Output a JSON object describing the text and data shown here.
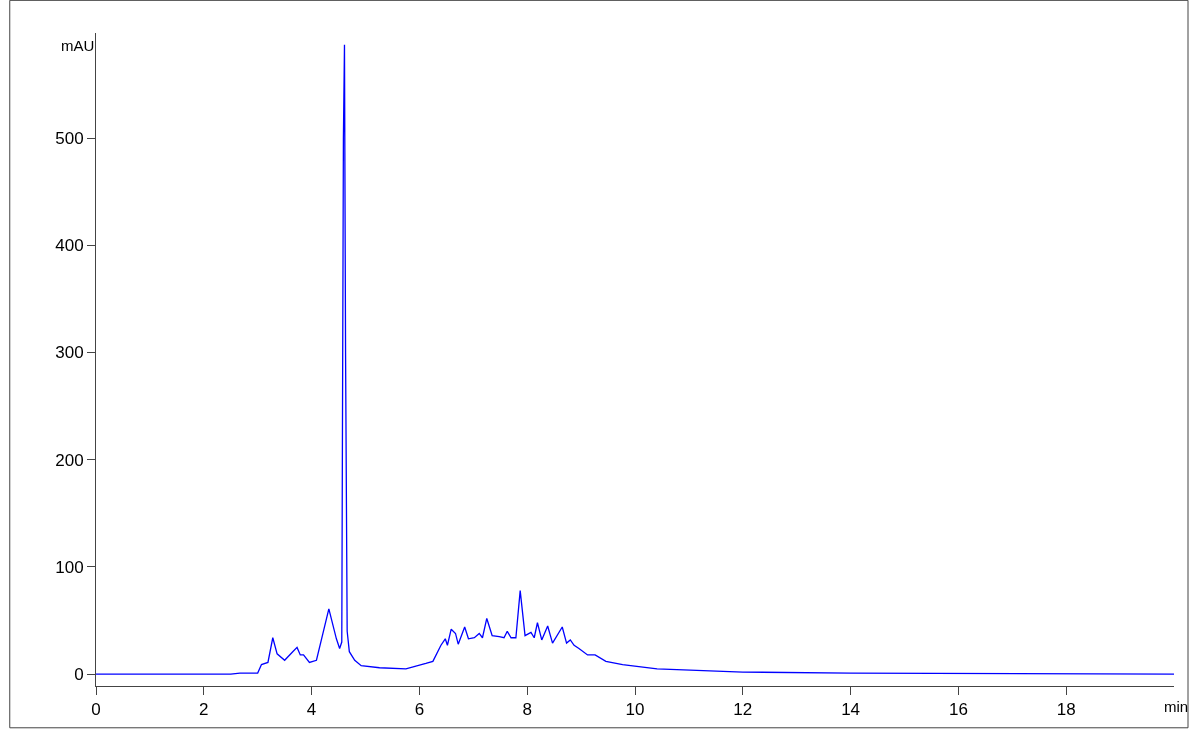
{
  "chart_data": {
    "type": "line",
    "xlabel": "min",
    "ylabel": "mAU",
    "x": [
      0,
      0.4,
      2.5,
      2.67,
      3.0,
      3.07,
      3.19,
      3.28,
      3.36,
      3.5,
      3.65,
      3.73,
      3.79,
      3.85,
      3.96,
      4.09,
      4.32,
      4.46,
      4.52,
      4.56,
      4.59,
      4.61,
      4.63,
      4.66,
      4.7,
      4.8,
      4.92,
      5.26,
      5.75,
      6.12,
      6.25,
      6.4,
      6.48,
      6.52,
      6.59,
      6.67,
      6.72,
      6.84,
      6.91,
      7.02,
      7.11,
      7.17,
      7.25,
      7.35,
      7.48,
      7.57,
      7.63,
      7.7,
      7.79,
      7.87,
      7.96,
      8.07,
      8.13,
      8.19,
      8.27,
      8.38,
      8.47,
      8.65,
      8.73,
      8.8,
      8.87,
      8.96,
      9.12,
      9.26,
      9.46,
      9.77,
      10.41,
      12,
      14,
      20
    ],
    "series": [
      {
        "color": "#0000ff",
        "values": [
          0,
          0,
          0,
          1,
          1,
          9,
          11,
          34,
          19,
          13,
          21,
          25,
          18,
          18,
          11,
          13,
          61,
          33,
          24,
          30,
          500,
          587,
          300,
          40,
          21,
          13,
          8,
          6,
          5,
          10,
          12,
          27,
          33,
          27,
          42,
          38,
          28,
          44,
          33,
          34,
          38,
          34,
          52,
          36,
          35,
          34,
          40,
          34,
          34,
          78,
          36,
          39,
          34,
          48,
          32,
          45,
          29,
          44,
          29,
          32,
          27,
          24,
          18,
          18,
          12,
          9,
          5,
          2,
          1,
          0
        ]
      }
    ],
    "xlim": [
      0,
      20
    ],
    "xticks": [
      0,
      2,
      4,
      6,
      8,
      10,
      12,
      14,
      16,
      18
    ],
    "ylim": [
      -11,
      598
    ],
    "yticks": [
      0,
      100,
      200,
      300,
      400,
      500
    ],
    "marker": "none",
    "line_style": "solid"
  }
}
